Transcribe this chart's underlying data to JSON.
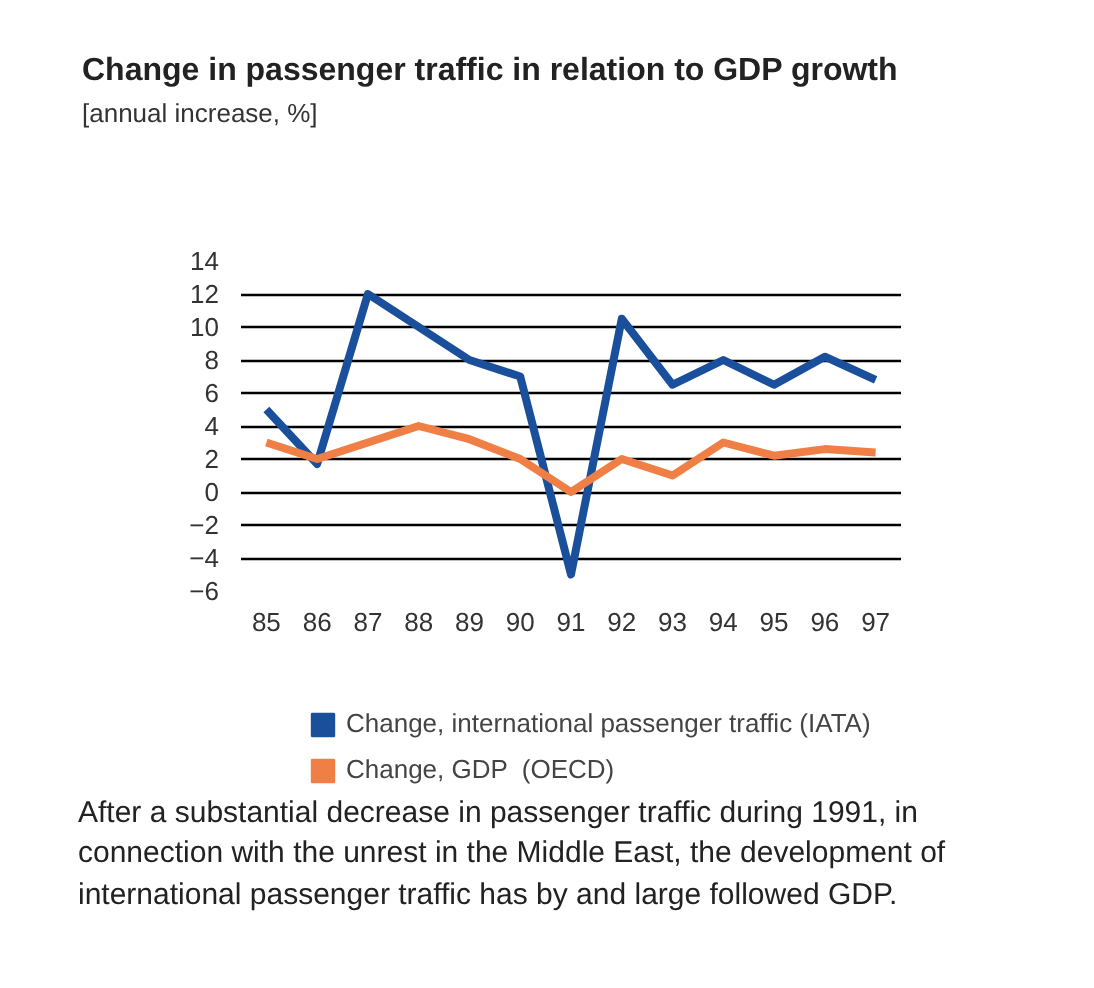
{
  "chart_data": {
    "type": "line",
    "title": "Change in passenger traffic in relation to GDP growth",
    "subtitle": "[annual increase, %]",
    "categories": [
      "85",
      "86",
      "87",
      "88",
      "89",
      "90",
      "91",
      "92",
      "93",
      "94",
      "95",
      "96",
      "97"
    ],
    "series": [
      {
        "name": "Change, international passenger traffic (IATA)",
        "color": "#1a4f9c",
        "values": [
          5,
          1.7,
          12,
          10,
          8,
          7,
          -5,
          10.5,
          6.5,
          8,
          6.5,
          8.2,
          6.8
        ]
      },
      {
        "name": "Change, GDP  (OECD)",
        "color": "#f07f45",
        "values": [
          3,
          2,
          3,
          4,
          3.2,
          2,
          0,
          2,
          1,
          3,
          2.2,
          2.6,
          2.4
        ]
      }
    ],
    "ylim": [
      -6,
      14
    ],
    "yticks": [
      {
        "value": -6,
        "label": "−6"
      },
      {
        "value": -4,
        "label": "−4"
      },
      {
        "value": -2,
        "label": "−2"
      },
      0,
      2,
      4,
      6,
      8,
      10,
      12,
      14
    ],
    "grid": "y",
    "legend": "bottom",
    "line_style": "solid",
    "annotations": [
      "After a substantial decrease in passenger traffic during 1991, in connection with the unrest in the Middle East, the development of international passenger traffic has by and large followed GDP."
    ]
  }
}
